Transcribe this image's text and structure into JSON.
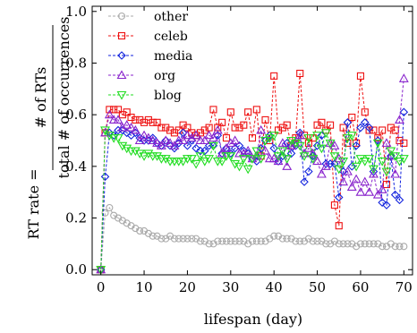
{
  "chart_data": {
    "type": "line",
    "xlabel": "lifespan (day)",
    "ylabel": {
      "prefix": "RT rate =",
      "numerator": "# of RTs",
      "denominator": "total # of occurrences"
    },
    "xlim": [
      -2,
      72
    ],
    "ylim": [
      -0.02,
      1.02
    ],
    "xticks": [
      0,
      10,
      20,
      30,
      40,
      50,
      60,
      70
    ],
    "yticks": [
      0.0,
      0.2,
      0.4,
      0.6,
      0.8,
      1.0
    ],
    "ytick_labels": [
      "0.0",
      "0.2",
      "0.4",
      "0.6",
      "0.8",
      "1.0"
    ],
    "grid": false,
    "legend_position": "top-left",
    "x": [
      0,
      1,
      2,
      3,
      4,
      5,
      6,
      7,
      8,
      9,
      10,
      11,
      12,
      13,
      14,
      15,
      16,
      17,
      18,
      19,
      20,
      21,
      22,
      23,
      24,
      25,
      26,
      27,
      28,
      29,
      30,
      31,
      32,
      33,
      34,
      35,
      36,
      37,
      38,
      39,
      40,
      41,
      42,
      43,
      44,
      45,
      46,
      47,
      48,
      49,
      50,
      51,
      52,
      53,
      54,
      55,
      56,
      57,
      58,
      59,
      60,
      61,
      62,
      63,
      64,
      65,
      66,
      67,
      68,
      69,
      70
    ],
    "series": [
      {
        "name": "other",
        "color": "#aaaaaa",
        "marker": "circle",
        "values": [
          0.0,
          0.22,
          0.24,
          0.21,
          0.2,
          0.19,
          0.18,
          0.17,
          0.16,
          0.15,
          0.15,
          0.14,
          0.13,
          0.13,
          0.12,
          0.12,
          0.13,
          0.12,
          0.12,
          0.12,
          0.12,
          0.12,
          0.12,
          0.11,
          0.11,
          0.1,
          0.1,
          0.11,
          0.11,
          0.11,
          0.11,
          0.11,
          0.11,
          0.11,
          0.1,
          0.11,
          0.11,
          0.11,
          0.11,
          0.12,
          0.13,
          0.13,
          0.12,
          0.12,
          0.12,
          0.11,
          0.11,
          0.11,
          0.12,
          0.11,
          0.11,
          0.11,
          0.1,
          0.1,
          0.11,
          0.1,
          0.1,
          0.1,
          0.1,
          0.09,
          0.1,
          0.1,
          0.1,
          0.1,
          0.1,
          0.09,
          0.09,
          0.1,
          0.09,
          0.09,
          0.09
        ]
      },
      {
        "name": "celeb",
        "color": "#ee1111",
        "marker": "square",
        "values": [
          0.0,
          0.53,
          0.62,
          0.62,
          0.62,
          0.6,
          0.61,
          0.59,
          0.58,
          0.58,
          0.57,
          0.58,
          0.57,
          0.57,
          0.55,
          0.55,
          0.54,
          0.53,
          0.54,
          0.56,
          0.55,
          0.53,
          0.52,
          0.53,
          0.54,
          0.55,
          0.62,
          0.55,
          0.57,
          0.51,
          0.61,
          0.55,
          0.55,
          0.56,
          0.61,
          0.51,
          0.62,
          0.44,
          0.58,
          0.5,
          0.75,
          0.54,
          0.55,
          0.56,
          0.48,
          0.51,
          0.76,
          0.52,
          0.49,
          0.51,
          0.56,
          0.57,
          0.54,
          0.56,
          0.25,
          0.17,
          0.55,
          0.49,
          0.59,
          0.49,
          0.75,
          0.61,
          0.54,
          0.54,
          0.51,
          0.54,
          0.33,
          0.55,
          0.54,
          0.5,
          0.49
        ]
      },
      {
        "name": "media",
        "color": "#1122dd",
        "marker": "diamond",
        "values": [
          0.0,
          0.36,
          0.53,
          0.52,
          0.54,
          0.54,
          0.53,
          0.52,
          0.53,
          0.51,
          0.5,
          0.5,
          0.51,
          0.49,
          0.48,
          0.5,
          0.48,
          0.47,
          0.49,
          0.53,
          0.48,
          0.5,
          0.47,
          0.46,
          0.46,
          0.48,
          0.48,
          0.52,
          0.45,
          0.47,
          0.45,
          0.47,
          0.48,
          0.46,
          0.45,
          0.43,
          0.42,
          0.47,
          0.5,
          0.52,
          0.47,
          0.42,
          0.44,
          0.49,
          0.45,
          0.48,
          0.53,
          0.34,
          0.38,
          0.44,
          0.48,
          0.52,
          0.41,
          0.41,
          0.41,
          0.28,
          0.38,
          0.57,
          0.4,
          0.48,
          0.55,
          0.57,
          0.55,
          0.38,
          0.5,
          0.26,
          0.25,
          0.44,
          0.29,
          0.27,
          0.61
        ]
      },
      {
        "name": "org",
        "color": "#8822cc",
        "marker": "triangle-up",
        "values": [
          0.0,
          0.53,
          0.6,
          0.58,
          0.58,
          0.55,
          0.56,
          0.55,
          0.54,
          0.5,
          0.52,
          0.51,
          0.5,
          0.49,
          0.48,
          0.5,
          0.49,
          0.48,
          0.5,
          0.5,
          0.52,
          0.51,
          0.52,
          0.5,
          0.5,
          0.52,
          0.51,
          0.54,
          0.45,
          0.47,
          0.49,
          0.5,
          0.45,
          0.45,
          0.46,
          0.43,
          0.44,
          0.54,
          0.46,
          0.43,
          0.43,
          0.42,
          0.49,
          0.4,
          0.48,
          0.49,
          0.52,
          0.45,
          0.47,
          0.45,
          0.42,
          0.37,
          0.4,
          0.49,
          0.48,
          0.43,
          0.34,
          0.38,
          0.32,
          0.35,
          0.3,
          0.34,
          0.3,
          0.37,
          0.29,
          0.31,
          0.49,
          0.44,
          0.37,
          0.58,
          0.74
        ]
      },
      {
        "name": "blog",
        "color": "#22dd22",
        "marker": "triangle-down",
        "values": [
          0.0,
          0.54,
          0.52,
          0.51,
          0.51,
          0.48,
          0.47,
          0.46,
          0.46,
          0.45,
          0.44,
          0.45,
          0.44,
          0.44,
          0.43,
          0.43,
          0.42,
          0.42,
          0.42,
          0.42,
          0.43,
          0.43,
          0.41,
          0.44,
          0.42,
          0.43,
          0.48,
          0.42,
          0.42,
          0.44,
          0.44,
          0.41,
          0.4,
          0.43,
          0.39,
          0.43,
          0.46,
          0.43,
          0.5,
          0.51,
          0.52,
          0.44,
          0.46,
          0.43,
          0.5,
          0.49,
          0.48,
          0.44,
          0.51,
          0.43,
          0.52,
          0.47,
          0.53,
          0.49,
          0.44,
          0.39,
          0.42,
          0.51,
          0.52,
          0.4,
          0.43,
          0.42,
          0.43,
          0.39,
          0.49,
          0.42,
          0.38,
          0.46,
          0.44,
          0.42,
          0.43
        ]
      }
    ]
  }
}
